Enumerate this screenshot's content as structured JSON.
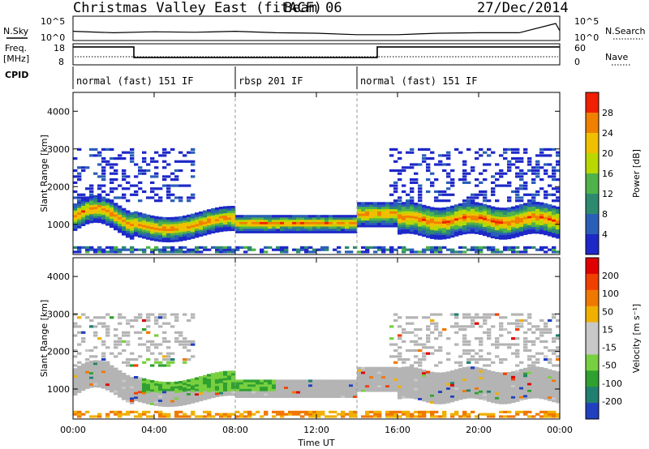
{
  "header": {
    "title": "Christmas Valley East (fitACF)",
    "beam": "Beam 06",
    "date": "27/Dec/2014"
  },
  "strip_labels": {
    "nsky": "N.Sky",
    "freq_line1": "Freq.",
    "freq_line2": "[MHz]",
    "cpid": "CPID",
    "nsearch": "N.Search",
    "nave": "Nave"
  },
  "strip_ticks": {
    "noise_top": "10^5",
    "noise_bottom": "10^0",
    "freq_top": "18",
    "freq_bottom": "8",
    "nave_top": "60",
    "nave_bottom": "0"
  },
  "cpid_segments": [
    {
      "label": "normal (fast) 151 IF",
      "start_hour": 0,
      "end_hour": 8
    },
    {
      "label": "rbsp 201 IF",
      "start_hour": 8,
      "end_hour": 14
    },
    {
      "label": "normal (fast) 151 IF",
      "start_hour": 14,
      "end_hour": 24
    }
  ],
  "colors": {
    "power_scale": [
      "#1e28c8",
      "#2a5fb8",
      "#2e8a6e",
      "#4fb24a",
      "#b8d800",
      "#f0c000",
      "#f08000",
      "#f02000"
    ],
    "velocity_scale": [
      "#e00000",
      "#f04000",
      "#f07800",
      "#f0b000",
      "#c8c8c8",
      "#c8c8c8",
      "#78d040",
      "#30a030",
      "#208070",
      "#2040c0"
    ],
    "ground_scatter": "#b4b4b4"
  },
  "chart_data": [
    {
      "type": "line",
      "name": "noise",
      "x_range": [
        0,
        24
      ],
      "y_log": true,
      "y_range_exponent": [
        0,
        5
      ],
      "series": [
        {
          "x": [
            0,
            2,
            4,
            6,
            8,
            10,
            12,
            14,
            16,
            18,
            20,
            22,
            23.8,
            24
          ],
          "values": [
            1.9,
            1.6,
            1.8,
            1.7,
            1.9,
            1.6,
            1.5,
            1.2,
            1.2,
            1.5,
            1.6,
            1.6,
            3.5,
            2.0
          ]
        }
      ]
    },
    {
      "type": "line",
      "name": "frequency",
      "x_range": [
        0,
        24
      ],
      "y_range": [
        8,
        18
      ],
      "series": [
        {
          "x": [
            0,
            3,
            3,
            15,
            15,
            24
          ],
          "values": [
            16.5,
            16.5,
            11.5,
            11.5,
            16.5,
            16.5
          ]
        }
      ]
    },
    {
      "type": "heatmap",
      "name": "power",
      "xlabel": "",
      "ylabel": "Slant Range [km]",
      "x_range_hours": [
        0,
        24
      ],
      "y_range_km": [
        200,
        4500
      ],
      "x_ticks": [
        "00:00",
        "04:00",
        "08:00",
        "12:00",
        "16:00",
        "20:00",
        "00:00"
      ],
      "y_ticks": [
        1000,
        2000,
        3000,
        4000
      ],
      "colorbar": {
        "label": "Power [dB]",
        "ticks": [
          4,
          8,
          12,
          16,
          20,
          24,
          28
        ],
        "range": [
          0,
          30
        ]
      }
    },
    {
      "type": "heatmap",
      "name": "velocity",
      "xlabel": "Time UT",
      "ylabel": "Slant Range [km]",
      "x_range_hours": [
        0,
        24
      ],
      "y_range_km": [
        200,
        4500
      ],
      "x_ticks": [
        "00:00",
        "04:00",
        "08:00",
        "12:00",
        "16:00",
        "20:00",
        "00:00"
      ],
      "y_ticks": [
        1000,
        2000,
        3000,
        4000
      ],
      "colorbar": {
        "label": "Velocity [m s⁻¹]",
        "ticks": [
          200,
          100,
          50,
          15,
          -15,
          -50,
          -100,
          -200
        ]
      }
    }
  ]
}
